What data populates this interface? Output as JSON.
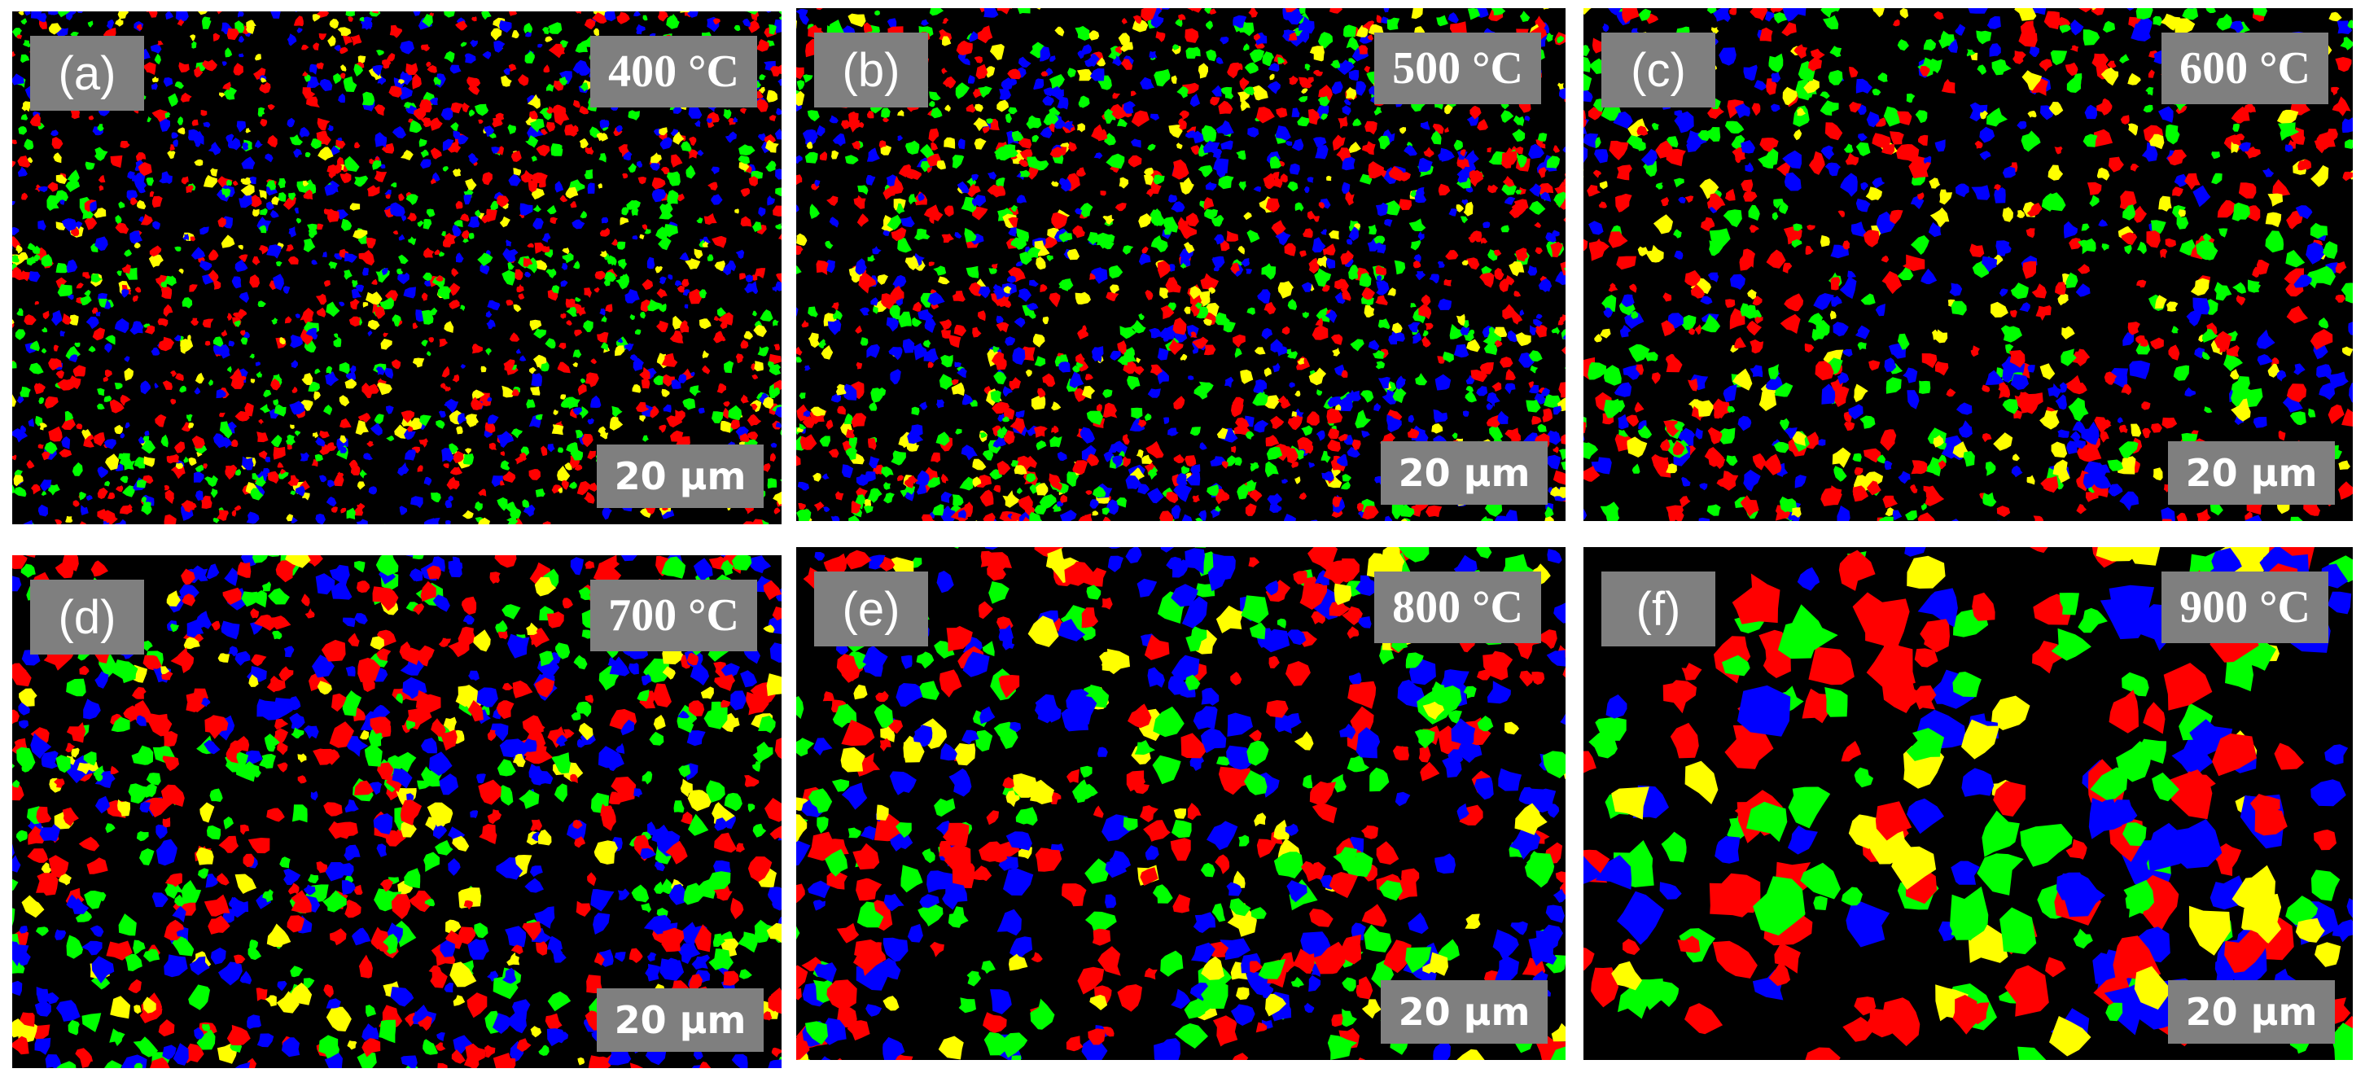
{
  "panels": [
    {
      "label": "(a)",
      "temperature": "400 °C",
      "scale_bar": "20 µm"
    },
    {
      "label": "(b)",
      "temperature": "500 °C",
      "scale_bar": "20 µm"
    },
    {
      "label": "(c)",
      "temperature": "600 °C",
      "scale_bar": "20 µm"
    },
    {
      "label": "(d)",
      "temperature": "700 °C",
      "scale_bar": "20 µm"
    },
    {
      "label": "(e)",
      "temperature": "800 °C",
      "scale_bar": "20 µm"
    },
    {
      "label": "(f)",
      "temperature": "900 °C",
      "scale_bar": "20 µm"
    }
  ]
}
